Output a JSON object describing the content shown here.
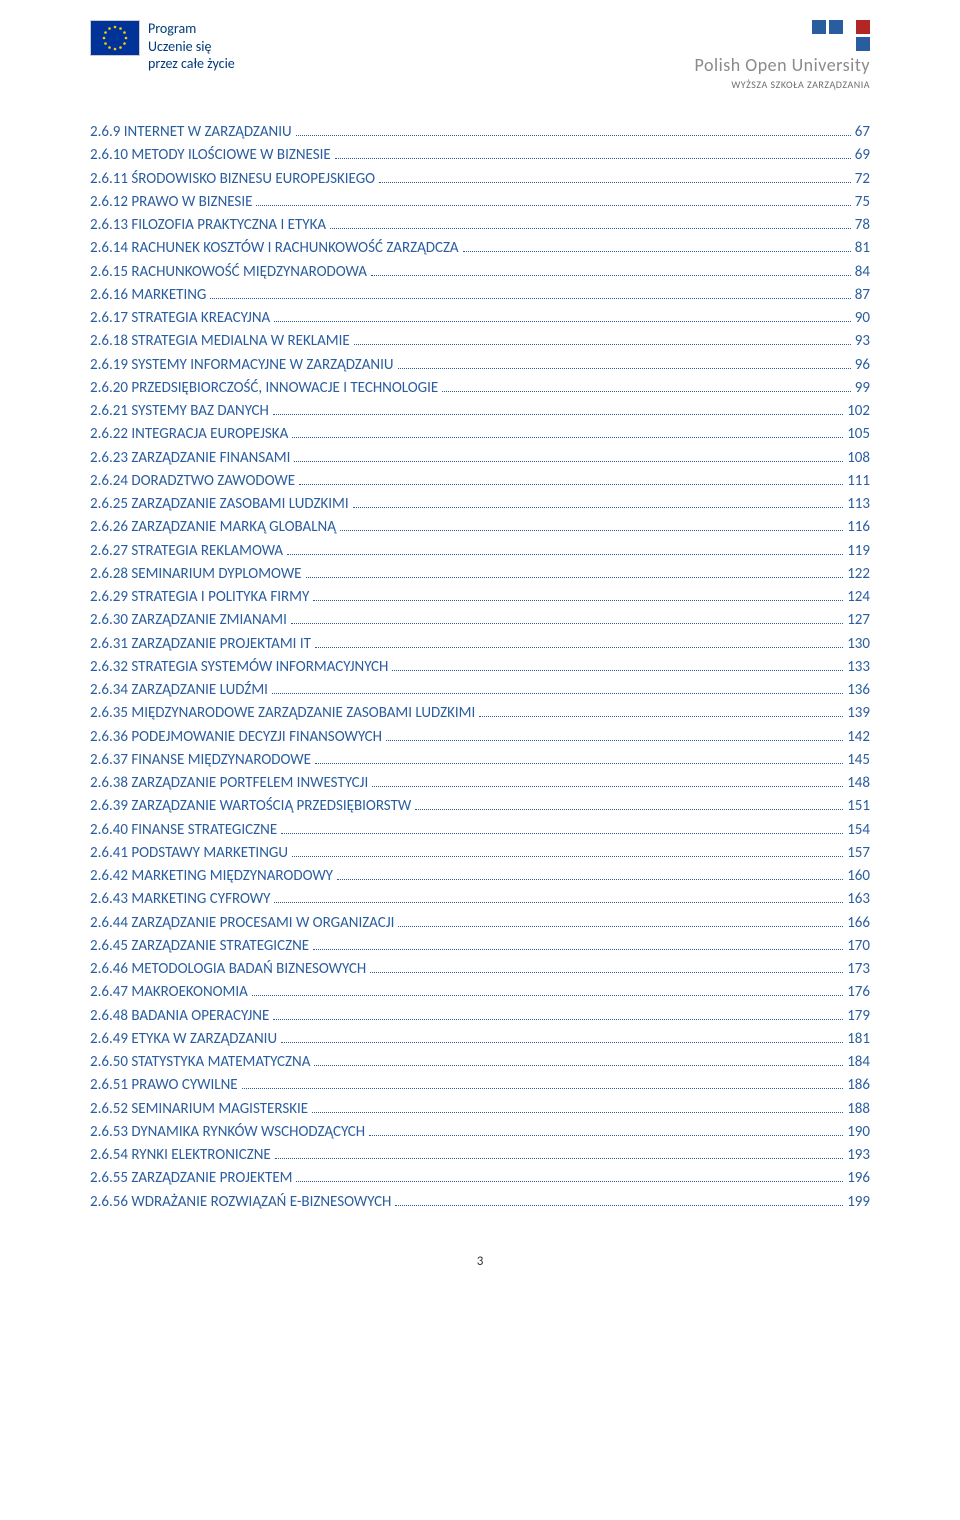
{
  "header": {
    "program_line1": "Program",
    "program_line2": "Uczenie się",
    "program_line3": "przez całe życie",
    "pou_title": "Polish Open University",
    "pou_sub": "WYŻSZA SZKOŁA ZARZĄDZANIA"
  },
  "toc": [
    {
      "label": "2.6.9 INTERNET W ZARZĄDZANIU",
      "page": "67"
    },
    {
      "label": "2.6.10 METODY ILOŚCIOWE W BIZNESIE",
      "page": "69"
    },
    {
      "label": "2.6.11 ŚRODOWISKO BIZNESU EUROPEJSKIEGO",
      "page": "72"
    },
    {
      "label": "2.6.12 PRAWO W BIZNESIE",
      "page": "75"
    },
    {
      "label": "2.6.13 FILOZOFIA PRAKTYCZNA I ETYKA",
      "page": "78"
    },
    {
      "label": "2.6.14 RACHUNEK KOSZTÓW I RACHUNKOWOŚĆ ZARZĄDCZA",
      "page": "81"
    },
    {
      "label": "2.6.15 RACHUNKOWOŚĆ MIĘDZYNARODOWA",
      "page": "84"
    },
    {
      "label": "2.6.16 MARKETING",
      "page": "87"
    },
    {
      "label": "2.6.17 STRATEGIA KREACYJNA",
      "page": "90"
    },
    {
      "label": "2.6.18 STRATEGIA MEDIALNA W REKLAMIE",
      "page": "93"
    },
    {
      "label": "2.6.19 SYSTEMY INFORMACYJNE W ZARZĄDZANIU",
      "page": "96"
    },
    {
      "label": "2.6.20 PRZEDSIĘBIORCZOŚĆ, INNOWACJE I TECHNOLOGIE",
      "page": "99"
    },
    {
      "label": "2.6.21 SYSTEMY BAZ DANYCH",
      "page": "102"
    },
    {
      "label": "2.6.22 INTEGRACJA EUROPEJSKA",
      "page": "105"
    },
    {
      "label": "2.6.23 ZARZĄDZANIE FINANSAMI",
      "page": "108"
    },
    {
      "label": "2.6.24 DORADZTWO ZAWODOWE",
      "page": "111"
    },
    {
      "label": "2.6.25 ZARZĄDZANIE ZASOBAMI LUDZKIMI",
      "page": "113"
    },
    {
      "label": "2.6.26 ZARZĄDZANIE MARKĄ GLOBALNĄ",
      "page": "116"
    },
    {
      "label": "2.6.27 STRATEGIA REKLAMOWA",
      "page": "119"
    },
    {
      "label": "2.6.28 SEMINARIUM DYPLOMOWE",
      "page": "122"
    },
    {
      "label": "2.6.29 STRATEGIA I POLITYKA FIRMY",
      "page": "124"
    },
    {
      "label": "2.6.30 ZARZĄDZANIE ZMIANAMI",
      "page": "127"
    },
    {
      "label": "2.6.31 ZARZĄDZANIE PROJEKTAMI IT",
      "page": "130"
    },
    {
      "label": "2.6.32 STRATEGIA SYSTEMÓW INFORMACYJNYCH",
      "page": "133"
    },
    {
      "label": "2.6.34 ZARZĄDZANIE  LUDŹMI",
      "page": "136"
    },
    {
      "label": "2.6.35 MIĘDZYNARODOWE  ZARZĄDZANIE ZASOBAMI LUDZKIMI",
      "page": "139"
    },
    {
      "label": "2.6.36 PODEJMOWANIE DECYZJI FINANSOWYCH",
      "page": "142"
    },
    {
      "label": "2.6.37 FINANSE MIĘDZYNARODOWE",
      "page": "145"
    },
    {
      "label": "2.6.38 ZARZĄDZANIE PORTFELEM INWESTYCJI",
      "page": "148"
    },
    {
      "label": "2.6.39 ZARZĄDZANIE WARTOŚCIĄ PRZEDSIĘBIORSTW",
      "page": "151"
    },
    {
      "label": "2.6.40 FINANSE STRATEGICZNE",
      "page": "154"
    },
    {
      "label": "2.6.41 PODSTAWY MARKETINGU",
      "page": "157"
    },
    {
      "label": "2.6.42 MARKETING MIĘDZYNARODOWY",
      "page": "160"
    },
    {
      "label": "2.6.43 MARKETING CYFROWY",
      "page": "163"
    },
    {
      "label": "2.6.44 ZARZĄDZANIE PROCESAMI W ORGANIZACJI",
      "page": "166"
    },
    {
      "label": "2.6.45 ZARZĄDZANIE STRATEGICZNE",
      "page": "170"
    },
    {
      "label": "2.6.46 METODOLOGIA BADAŃ BIZNESOWYCH",
      "page": "173"
    },
    {
      "label": "2.6.47 MAKROEKONOMIA",
      "page": "176"
    },
    {
      "label": "2.6.48 BADANIA OPERACYJNE",
      "page": "179"
    },
    {
      "label": "2.6.49 ETYKA W ZARZĄDZANIU",
      "page": "181"
    },
    {
      "label": "2.6.50 STATYSTYKA MATEMATYCZNA",
      "page": "184"
    },
    {
      "label": "2.6.51 PRAWO CYWILNE",
      "page": "186"
    },
    {
      "label": "2.6.52 SEMINARIUM MAGISTERSKIE",
      "page": "188"
    },
    {
      "label": "2.6.53 DYNAMIKA RYNKÓW WSCHODZĄCYCH",
      "page": "190"
    },
    {
      "label": "2.6.54 RYNKI ELEKTRONICZNE",
      "page": "193"
    },
    {
      "label": "2.6.55 ZARZĄDZANIE PROJEKTEM",
      "page": "196"
    },
    {
      "label": "2.6.56 WDRAŻANIE ROZWIĄZAŃ E-BIZNESOWYCH",
      "page": "199"
    }
  ],
  "footer": {
    "page_no": "3"
  },
  "colors": {
    "link": "#2a5d9f",
    "program": "#003a7a",
    "eu_blue": "#003399",
    "eu_star": "#ffcc00",
    "pou_blue": "#2a5d9f",
    "pou_red": "#b42525",
    "pou_grey": "#8a8a8a"
  }
}
